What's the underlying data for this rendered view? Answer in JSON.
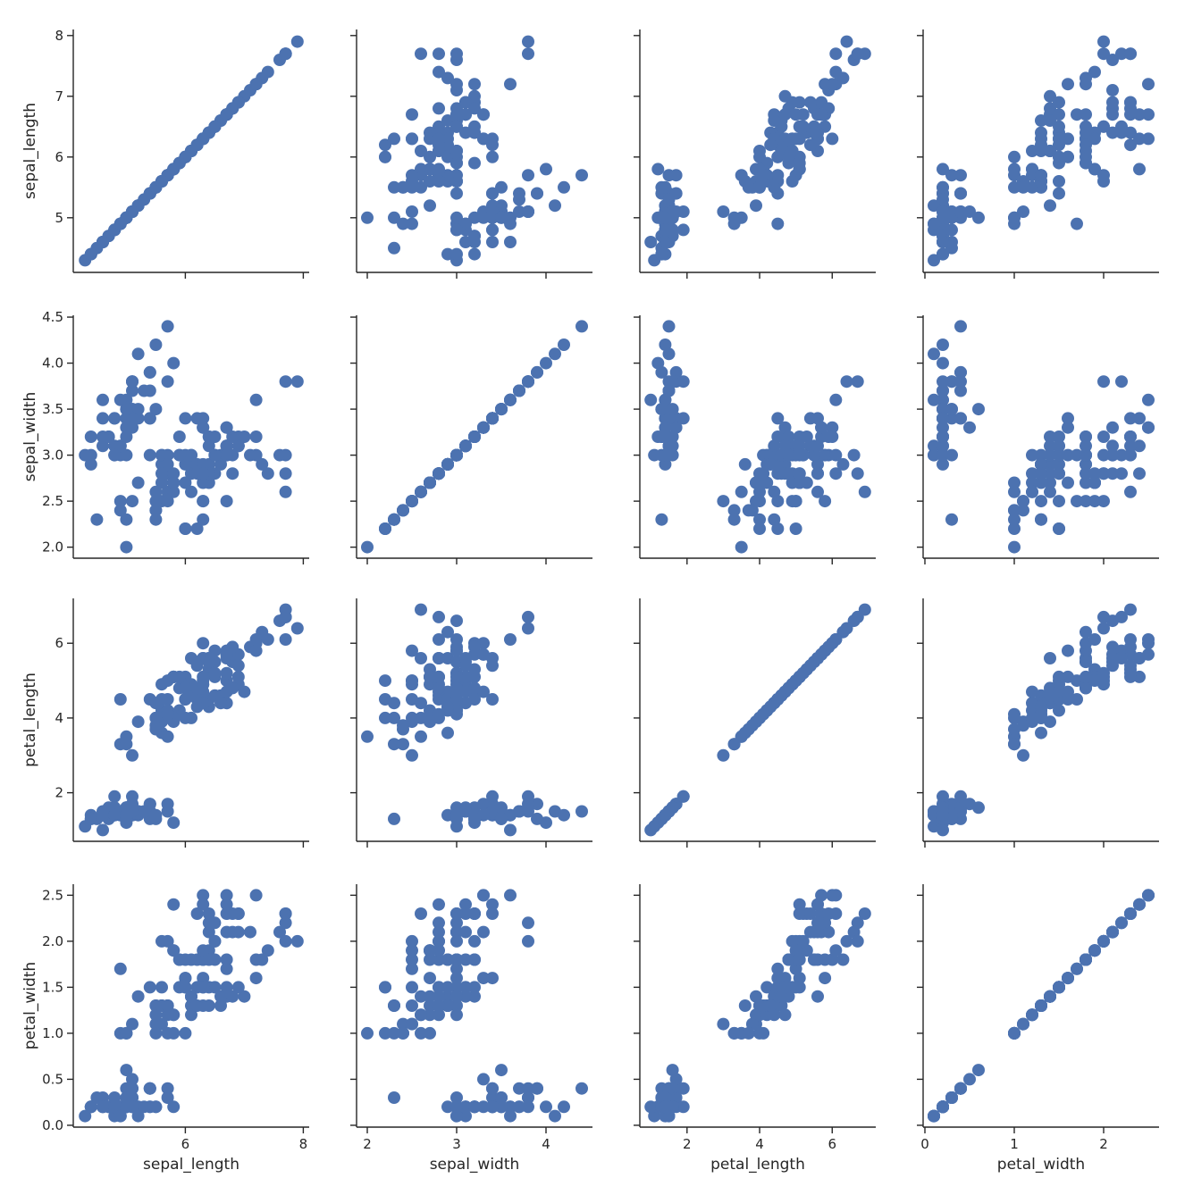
{
  "chart_data": {
    "type": "scatter",
    "variables": [
      "sepal_length",
      "sepal_width",
      "petal_length",
      "petal_width"
    ],
    "marker_color": "#4c72b0",
    "grid": false,
    "style": "ticks",
    "axes": {
      "sepal_length": {
        "label": "sepal_length",
        "range": [
          4.1,
          8.1
        ],
        "ticks": [
          5,
          6,
          7,
          8
        ],
        "tick_labels": [
          "5",
          "6",
          "7",
          "8"
        ],
        "x_ticks": [
          6,
          8
        ],
        "x_tick_labels": [
          "6",
          "8"
        ]
      },
      "sepal_width": {
        "label": "sepal_width",
        "range": [
          1.88,
          4.52
        ],
        "ticks": [
          2.0,
          2.5,
          3.0,
          3.5,
          4.0,
          4.5
        ],
        "tick_labels": [
          "2.0",
          "2.5",
          "3.0",
          "3.5",
          "4.0",
          "4.5"
        ],
        "x_ticks": [
          2,
          3,
          4
        ],
        "x_tick_labels": [
          "2",
          "3",
          "4"
        ]
      },
      "petal_length": {
        "label": "petal_length",
        "range": [
          0.7,
          7.2
        ],
        "ticks": [
          2,
          4,
          6
        ],
        "tick_labels": [
          "2",
          "4",
          "6"
        ],
        "x_ticks": [
          2,
          4,
          6
        ],
        "x_tick_labels": [
          "2",
          "4",
          "6"
        ]
      },
      "petal_width": {
        "label": "petal_width",
        "range": [
          -0.02,
          2.62
        ],
        "ticks": [
          0.0,
          0.5,
          1.0,
          1.5,
          2.0,
          2.5
        ],
        "tick_labels": [
          "0.0",
          "0.5",
          "1.0",
          "1.5",
          "2.0",
          "2.5"
        ],
        "x_ticks": [
          0,
          1,
          2
        ],
        "x_tick_labels": [
          "0",
          "1",
          "2"
        ]
      }
    },
    "points": [
      [
        5.1,
        3.5,
        1.4,
        0.2
      ],
      [
        4.9,
        3.0,
        1.4,
        0.2
      ],
      [
        4.7,
        3.2,
        1.3,
        0.2
      ],
      [
        4.6,
        3.1,
        1.5,
        0.2
      ],
      [
        5.0,
        3.6,
        1.4,
        0.2
      ],
      [
        5.4,
        3.9,
        1.7,
        0.4
      ],
      [
        4.6,
        3.4,
        1.4,
        0.3
      ],
      [
        5.0,
        3.4,
        1.5,
        0.2
      ],
      [
        4.4,
        2.9,
        1.4,
        0.2
      ],
      [
        4.9,
        3.1,
        1.5,
        0.1
      ],
      [
        5.4,
        3.7,
        1.5,
        0.2
      ],
      [
        4.8,
        3.4,
        1.6,
        0.2
      ],
      [
        4.8,
        3.0,
        1.4,
        0.1
      ],
      [
        4.3,
        3.0,
        1.1,
        0.1
      ],
      [
        5.8,
        4.0,
        1.2,
        0.2
      ],
      [
        5.7,
        4.4,
        1.5,
        0.4
      ],
      [
        5.4,
        3.9,
        1.3,
        0.4
      ],
      [
        5.1,
        3.5,
        1.4,
        0.3
      ],
      [
        5.7,
        3.8,
        1.7,
        0.3
      ],
      [
        5.1,
        3.8,
        1.5,
        0.3
      ],
      [
        5.4,
        3.4,
        1.7,
        0.2
      ],
      [
        5.1,
        3.7,
        1.5,
        0.4
      ],
      [
        4.6,
        3.6,
        1.0,
        0.2
      ],
      [
        5.1,
        3.3,
        1.7,
        0.5
      ],
      [
        4.8,
        3.4,
        1.9,
        0.2
      ],
      [
        5.0,
        3.0,
        1.6,
        0.2
      ],
      [
        5.0,
        3.4,
        1.6,
        0.4
      ],
      [
        5.2,
        3.5,
        1.5,
        0.2
      ],
      [
        5.2,
        3.4,
        1.4,
        0.2
      ],
      [
        4.7,
        3.2,
        1.6,
        0.2
      ],
      [
        4.8,
        3.1,
        1.6,
        0.2
      ],
      [
        5.4,
        3.4,
        1.5,
        0.4
      ],
      [
        5.2,
        4.1,
        1.5,
        0.1
      ],
      [
        5.5,
        4.2,
        1.4,
        0.2
      ],
      [
        4.9,
        3.1,
        1.5,
        0.2
      ],
      [
        5.0,
        3.2,
        1.2,
        0.2
      ],
      [
        5.5,
        3.5,
        1.3,
        0.2
      ],
      [
        4.9,
        3.6,
        1.4,
        0.1
      ],
      [
        4.4,
        3.0,
        1.3,
        0.2
      ],
      [
        5.1,
        3.4,
        1.5,
        0.2
      ],
      [
        5.0,
        3.5,
        1.3,
        0.3
      ],
      [
        4.5,
        2.3,
        1.3,
        0.3
      ],
      [
        4.4,
        3.2,
        1.3,
        0.2
      ],
      [
        5.0,
        3.5,
        1.6,
        0.6
      ],
      [
        5.1,
        3.8,
        1.9,
        0.4
      ],
      [
        4.8,
        3.0,
        1.4,
        0.3
      ],
      [
        5.1,
        3.8,
        1.6,
        0.2
      ],
      [
        4.6,
        3.2,
        1.4,
        0.2
      ],
      [
        5.3,
        3.7,
        1.5,
        0.2
      ],
      [
        5.0,
        3.3,
        1.4,
        0.2
      ],
      [
        7.0,
        3.2,
        4.7,
        1.4
      ],
      [
        6.4,
        3.2,
        4.5,
        1.5
      ],
      [
        6.9,
        3.1,
        4.9,
        1.5
      ],
      [
        5.5,
        2.3,
        4.0,
        1.3
      ],
      [
        6.5,
        2.8,
        4.6,
        1.5
      ],
      [
        5.7,
        2.8,
        4.5,
        1.3
      ],
      [
        6.3,
        3.3,
        4.7,
        1.6
      ],
      [
        4.9,
        2.4,
        3.3,
        1.0
      ],
      [
        6.6,
        2.9,
        4.6,
        1.3
      ],
      [
        5.2,
        2.7,
        3.9,
        1.4
      ],
      [
        5.0,
        2.0,
        3.5,
        1.0
      ],
      [
        5.9,
        3.0,
        4.2,
        1.5
      ],
      [
        6.0,
        2.2,
        4.0,
        1.0
      ],
      [
        6.1,
        2.9,
        4.7,
        1.4
      ],
      [
        5.6,
        2.9,
        3.6,
        1.3
      ],
      [
        6.7,
        3.1,
        4.4,
        1.4
      ],
      [
        5.6,
        3.0,
        4.5,
        1.5
      ],
      [
        5.8,
        2.7,
        4.1,
        1.0
      ],
      [
        6.2,
        2.2,
        4.5,
        1.5
      ],
      [
        5.6,
        2.5,
        3.9,
        1.1
      ],
      [
        5.9,
        3.2,
        4.8,
        1.8
      ],
      [
        6.1,
        2.8,
        4.0,
        1.3
      ],
      [
        6.3,
        2.5,
        4.9,
        1.5
      ],
      [
        6.1,
        2.8,
        4.7,
        1.2
      ],
      [
        6.4,
        2.9,
        4.3,
        1.3
      ],
      [
        6.6,
        3.0,
        4.4,
        1.4
      ],
      [
        6.8,
        2.8,
        4.8,
        1.4
      ],
      [
        6.7,
        3.0,
        5.0,
        1.7
      ],
      [
        6.0,
        2.9,
        4.5,
        1.5
      ],
      [
        5.7,
        2.6,
        3.5,
        1.0
      ],
      [
        5.5,
        2.4,
        3.8,
        1.1
      ],
      [
        5.5,
        2.4,
        3.7,
        1.0
      ],
      [
        5.8,
        2.7,
        3.9,
        1.2
      ],
      [
        6.0,
        2.7,
        5.1,
        1.6
      ],
      [
        5.4,
        3.0,
        4.5,
        1.5
      ],
      [
        6.0,
        3.4,
        4.5,
        1.6
      ],
      [
        6.7,
        3.1,
        4.7,
        1.5
      ],
      [
        6.3,
        2.3,
        4.4,
        1.3
      ],
      [
        5.6,
        3.0,
        4.1,
        1.3
      ],
      [
        5.5,
        2.5,
        4.0,
        1.3
      ],
      [
        5.5,
        2.6,
        4.4,
        1.2
      ],
      [
        6.1,
        3.0,
        4.6,
        1.4
      ],
      [
        5.8,
        2.6,
        4.0,
        1.2
      ],
      [
        5.0,
        2.3,
        3.3,
        1.0
      ],
      [
        5.6,
        2.7,
        4.2,
        1.3
      ],
      [
        5.7,
        3.0,
        4.2,
        1.2
      ],
      [
        5.7,
        2.9,
        4.2,
        1.3
      ],
      [
        6.2,
        2.9,
        4.3,
        1.3
      ],
      [
        5.1,
        2.5,
        3.0,
        1.1
      ],
      [
        5.7,
        2.8,
        4.1,
        1.3
      ],
      [
        6.3,
        3.3,
        6.0,
        2.5
      ],
      [
        5.8,
        2.7,
        5.1,
        1.9
      ],
      [
        7.1,
        3.0,
        5.9,
        2.1
      ],
      [
        6.3,
        2.9,
        5.6,
        1.8
      ],
      [
        6.5,
        3.0,
        5.8,
        2.2
      ],
      [
        7.6,
        3.0,
        6.6,
        2.1
      ],
      [
        4.9,
        2.5,
        4.5,
        1.7
      ],
      [
        7.3,
        2.9,
        6.3,
        1.8
      ],
      [
        6.7,
        2.5,
        5.8,
        1.8
      ],
      [
        7.2,
        3.6,
        6.1,
        2.5
      ],
      [
        6.5,
        3.2,
        5.1,
        2.0
      ],
      [
        6.4,
        2.7,
        5.3,
        1.9
      ],
      [
        6.8,
        3.0,
        5.5,
        2.1
      ],
      [
        5.7,
        2.5,
        5.0,
        2.0
      ],
      [
        5.8,
        2.8,
        5.1,
        2.4
      ],
      [
        6.4,
        3.2,
        5.3,
        2.3
      ],
      [
        6.5,
        3.0,
        5.5,
        1.8
      ],
      [
        7.7,
        3.8,
        6.7,
        2.2
      ],
      [
        7.7,
        2.6,
        6.9,
        2.3
      ],
      [
        6.0,
        2.2,
        5.0,
        1.5
      ],
      [
        6.9,
        3.2,
        5.7,
        2.3
      ],
      [
        5.6,
        2.8,
        4.9,
        2.0
      ],
      [
        7.7,
        2.8,
        6.7,
        2.0
      ],
      [
        6.3,
        2.7,
        4.9,
        1.8
      ],
      [
        6.7,
        3.3,
        5.7,
        2.1
      ],
      [
        7.2,
        3.2,
        6.0,
        1.8
      ],
      [
        6.2,
        2.8,
        4.8,
        1.8
      ],
      [
        6.1,
        3.0,
        4.9,
        1.8
      ],
      [
        6.4,
        2.8,
        5.6,
        2.1
      ],
      [
        7.2,
        3.0,
        5.8,
        1.6
      ],
      [
        7.4,
        2.8,
        6.1,
        1.9
      ],
      [
        7.9,
        3.8,
        6.4,
        2.0
      ],
      [
        6.4,
        2.8,
        5.6,
        2.2
      ],
      [
        6.3,
        2.8,
        5.1,
        1.5
      ],
      [
        6.1,
        2.6,
        5.6,
        1.4
      ],
      [
        7.7,
        3.0,
        6.1,
        2.3
      ],
      [
        6.3,
        3.4,
        5.6,
        2.4
      ],
      [
        6.4,
        3.1,
        5.5,
        1.8
      ],
      [
        6.0,
        3.0,
        4.8,
        1.8
      ],
      [
        6.9,
        3.1,
        5.4,
        2.1
      ],
      [
        6.7,
        3.1,
        5.6,
        2.4
      ],
      [
        6.9,
        3.1,
        5.1,
        2.3
      ],
      [
        5.8,
        2.7,
        5.1,
        1.9
      ],
      [
        6.8,
        3.2,
        5.9,
        2.3
      ],
      [
        6.7,
        3.3,
        5.7,
        2.5
      ],
      [
        6.7,
        3.0,
        5.2,
        2.3
      ],
      [
        6.3,
        2.5,
        5.0,
        1.9
      ],
      [
        6.5,
        3.0,
        5.2,
        2.0
      ],
      [
        6.2,
        3.4,
        5.4,
        2.3
      ],
      [
        5.9,
        3.0,
        5.1,
        1.8
      ]
    ]
  }
}
